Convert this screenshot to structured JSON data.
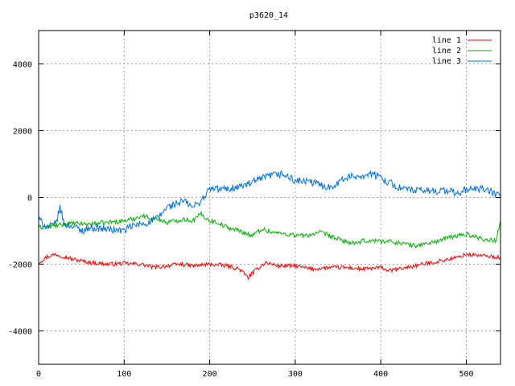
{
  "chart_data": {
    "type": "line",
    "title": "p3620_14",
    "xlabel": "",
    "ylabel": "",
    "xlim": [
      0,
      540
    ],
    "ylim": [
      -5000,
      5000
    ],
    "xticks": [
      0,
      100,
      200,
      300,
      400,
      500
    ],
    "yticks": [
      -4000,
      -2000,
      0,
      2000,
      4000
    ],
    "grid": true,
    "legend": "top-right",
    "series": [
      {
        "name": "line 1",
        "color": "#ff0000",
        "points": [
          [
            0,
            -1950
          ],
          [
            10,
            -1780
          ],
          [
            20,
            -1700
          ],
          [
            40,
            -1850
          ],
          [
            60,
            -1950
          ],
          [
            80,
            -2000
          ],
          [
            100,
            -1980
          ],
          [
            120,
            -2000
          ],
          [
            135,
            -2100
          ],
          [
            150,
            -2050
          ],
          [
            165,
            -2000
          ],
          [
            180,
            -2050
          ],
          [
            200,
            -2000
          ],
          [
            220,
            -2050
          ],
          [
            235,
            -2150
          ],
          [
            245,
            -2400
          ],
          [
            255,
            -2150
          ],
          [
            265,
            -1950
          ],
          [
            280,
            -2050
          ],
          [
            300,
            -2050
          ],
          [
            320,
            -2150
          ],
          [
            340,
            -2100
          ],
          [
            360,
            -2100
          ],
          [
            380,
            -2150
          ],
          [
            400,
            -2100
          ],
          [
            410,
            -2200
          ],
          [
            430,
            -2100
          ],
          [
            450,
            -2000
          ],
          [
            470,
            -1900
          ],
          [
            490,
            -1800
          ],
          [
            500,
            -1700
          ],
          [
            520,
            -1750
          ],
          [
            540,
            -1800
          ]
        ]
      },
      {
        "name": "line 2",
        "color": "#00b000",
        "points": [
          [
            0,
            -900
          ],
          [
            20,
            -850
          ],
          [
            40,
            -780
          ],
          [
            60,
            -800
          ],
          [
            80,
            -750
          ],
          [
            100,
            -700
          ],
          [
            110,
            -650
          ],
          [
            120,
            -550
          ],
          [
            130,
            -600
          ],
          [
            140,
            -650
          ],
          [
            150,
            -750
          ],
          [
            160,
            -700
          ],
          [
            170,
            -650
          ],
          [
            180,
            -700
          ],
          [
            190,
            -500
          ],
          [
            200,
            -700
          ],
          [
            210,
            -750
          ],
          [
            220,
            -900
          ],
          [
            235,
            -1000
          ],
          [
            250,
            -1150
          ],
          [
            260,
            -950
          ],
          [
            275,
            -1050
          ],
          [
            290,
            -1100
          ],
          [
            310,
            -1150
          ],
          [
            330,
            -1050
          ],
          [
            350,
            -1250
          ],
          [
            370,
            -1400
          ],
          [
            380,
            -1300
          ],
          [
            400,
            -1300
          ],
          [
            420,
            -1350
          ],
          [
            440,
            -1450
          ],
          [
            460,
            -1350
          ],
          [
            480,
            -1200
          ],
          [
            500,
            -1100
          ],
          [
            520,
            -1250
          ],
          [
            535,
            -1300
          ],
          [
            540,
            -650
          ]
        ]
      },
      {
        "name": "line 3",
        "color": "#0070e0",
        "points": [
          [
            0,
            -650
          ],
          [
            10,
            -900
          ],
          [
            20,
            -800
          ],
          [
            25,
            -300
          ],
          [
            30,
            -800
          ],
          [
            40,
            -850
          ],
          [
            50,
            -1000
          ],
          [
            60,
            -900
          ],
          [
            80,
            -950
          ],
          [
            100,
            -1000
          ],
          [
            110,
            -850
          ],
          [
            120,
            -800
          ],
          [
            130,
            -750
          ],
          [
            140,
            -600
          ],
          [
            150,
            -300
          ],
          [
            160,
            -200
          ],
          [
            170,
            -100
          ],
          [
            180,
            -300
          ],
          [
            190,
            -100
          ],
          [
            200,
            250
          ],
          [
            220,
            250
          ],
          [
            240,
            350
          ],
          [
            260,
            550
          ],
          [
            270,
            650
          ],
          [
            285,
            700
          ],
          [
            300,
            500
          ],
          [
            320,
            450
          ],
          [
            340,
            300
          ],
          [
            360,
            600
          ],
          [
            375,
            650
          ],
          [
            390,
            700
          ],
          [
            400,
            600
          ],
          [
            410,
            450
          ],
          [
            420,
            300
          ],
          [
            440,
            200
          ],
          [
            460,
            200
          ],
          [
            480,
            200
          ],
          [
            490,
            100
          ],
          [
            500,
            250
          ],
          [
            520,
            250
          ],
          [
            535,
            100
          ],
          [
            540,
            50
          ]
        ]
      }
    ]
  }
}
